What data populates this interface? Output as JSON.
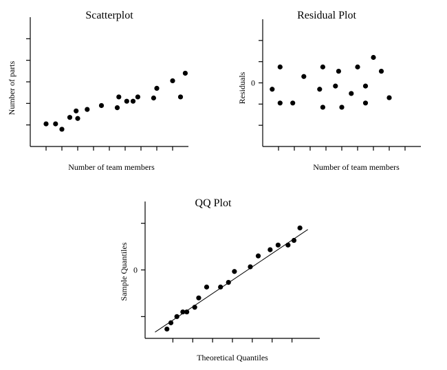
{
  "chart_data": [
    {
      "type": "scatter",
      "title": "Scatterplot",
      "xlabel": "Number of team members",
      "ylabel": "Number of parts",
      "xlim": [
        0,
        10
      ],
      "ylim": [
        0,
        6
      ],
      "x_ticks": [
        1,
        2,
        3,
        4,
        5,
        6,
        7,
        8,
        9
      ],
      "y_ticks": [
        1,
        2,
        3,
        4,
        5
      ],
      "y_tick_labels": [],
      "points": [
        {
          "x": 1.0,
          "y": 1.05
        },
        {
          "x": 1.6,
          "y": 1.05
        },
        {
          "x": 2.0,
          "y": 0.8
        },
        {
          "x": 2.5,
          "y": 1.35
        },
        {
          "x": 2.9,
          "y": 1.65
        },
        {
          "x": 3.0,
          "y": 1.3
        },
        {
          "x": 3.6,
          "y": 1.72
        },
        {
          "x": 4.5,
          "y": 1.9
        },
        {
          "x": 5.5,
          "y": 1.8
        },
        {
          "x": 5.6,
          "y": 2.3
        },
        {
          "x": 6.1,
          "y": 2.1
        },
        {
          "x": 6.5,
          "y": 2.1
        },
        {
          "x": 6.8,
          "y": 2.3
        },
        {
          "x": 7.8,
          "y": 2.25
        },
        {
          "x": 8.0,
          "y": 2.7
        },
        {
          "x": 9.0,
          "y": 3.05
        },
        {
          "x": 9.5,
          "y": 2.3
        },
        {
          "x": 9.8,
          "y": 3.4
        }
      ]
    },
    {
      "type": "scatter",
      "title": "Residual Plot",
      "xlabel": "Number of team members",
      "ylabel": "Residuals",
      "xlim": [
        0,
        10
      ],
      "ylim": [
        -3,
        3
      ],
      "x_ticks": [
        1,
        2,
        3,
        4,
        5,
        6,
        7,
        8,
        9
      ],
      "y_ticks": [
        -2,
        -1,
        0,
        1,
        2
      ],
      "y_tick_labels": [
        {
          "value": 0,
          "label": "0"
        }
      ],
      "points": [
        {
          "x": 0.6,
          "y": -0.3
        },
        {
          "x": 1.1,
          "y": 0.75
        },
        {
          "x": 1.1,
          "y": -0.95
        },
        {
          "x": 1.9,
          "y": -0.95
        },
        {
          "x": 2.6,
          "y": 0.3
        },
        {
          "x": 3.6,
          "y": -0.3
        },
        {
          "x": 3.8,
          "y": 0.75
        },
        {
          "x": 3.8,
          "y": -1.15
        },
        {
          "x": 4.6,
          "y": -0.15
        },
        {
          "x": 4.8,
          "y": 0.55
        },
        {
          "x": 5.0,
          "y": -1.15
        },
        {
          "x": 5.6,
          "y": -0.5
        },
        {
          "x": 6.0,
          "y": 0.75
        },
        {
          "x": 6.5,
          "y": -0.15
        },
        {
          "x": 6.5,
          "y": -0.95
        },
        {
          "x": 7.0,
          "y": 1.2
        },
        {
          "x": 7.5,
          "y": 0.55
        },
        {
          "x": 8.0,
          "y": -0.7
        }
      ]
    },
    {
      "type": "scatter",
      "title": "QQ Plot",
      "xlabel": "Theoretical Quantiles",
      "ylabel": "Sample Quantiles",
      "xlim": [
        -2.2,
        2.2
      ],
      "ylim": [
        -2.2,
        2.2
      ],
      "x_ticks": [
        -1.5,
        -1.0,
        -0.5,
        0.0,
        0.5,
        1.0,
        1.5
      ],
      "y_ticks": [
        -1.5,
        0.0,
        1.5
      ],
      "y_tick_labels": [
        {
          "value": 0.0,
          "label": "0"
        }
      ],
      "reference_line": {
        "x": [
          -1.95,
          1.9
        ],
        "y": [
          -2.0,
          1.3
        ]
      },
      "points": [
        {
          "x": -1.65,
          "y": -1.9
        },
        {
          "x": -1.55,
          "y": -1.7
        },
        {
          "x": -1.4,
          "y": -1.5
        },
        {
          "x": -1.25,
          "y": -1.35
        },
        {
          "x": -1.15,
          "y": -1.35
        },
        {
          "x": -0.95,
          "y": -1.2
        },
        {
          "x": -0.85,
          "y": -0.9
        },
        {
          "x": -0.65,
          "y": -0.55
        },
        {
          "x": -0.3,
          "y": -0.55
        },
        {
          "x": -0.1,
          "y": -0.4
        },
        {
          "x": 0.05,
          "y": -0.05
        },
        {
          "x": 0.45,
          "y": 0.1
        },
        {
          "x": 0.65,
          "y": 0.45
        },
        {
          "x": 0.95,
          "y": 0.65
        },
        {
          "x": 1.15,
          "y": 0.8
        },
        {
          "x": 1.4,
          "y": 0.8
        },
        {
          "x": 1.55,
          "y": 0.95
        },
        {
          "x": 1.7,
          "y": 1.35
        }
      ]
    }
  ]
}
